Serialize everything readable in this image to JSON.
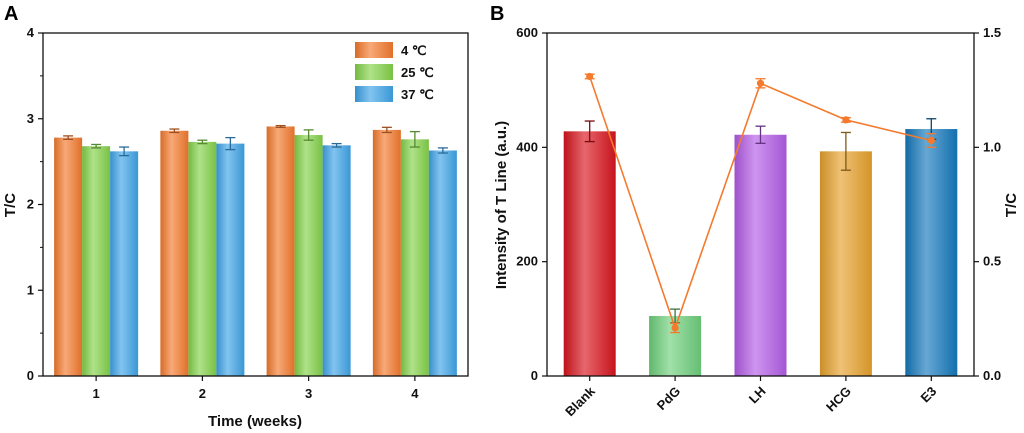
{
  "chart_data": [
    {
      "panel": "A",
      "type": "bar",
      "xlabel": "Time (weeks)",
      "ylabel": "T/C",
      "ylim": [
        0,
        4
      ],
      "yticks": [
        "0",
        "1",
        "2",
        "3",
        "4"
      ],
      "categories": [
        "1",
        "2",
        "3",
        "4"
      ],
      "legend_position": "top-right",
      "series": [
        {
          "name": "4 ℃",
          "color": "#f47a2e",
          "values": [
            2.78,
            2.86,
            2.91,
            2.87
          ],
          "errors": [
            0.02,
            0.02,
            0.01,
            0.03
          ]
        },
        {
          "name": "25 ℃",
          "color": "#84d24a",
          "values": [
            2.68,
            2.73,
            2.81,
            2.76
          ],
          "errors": [
            0.02,
            0.02,
            0.06,
            0.09
          ]
        },
        {
          "name": "37 ℃",
          "color": "#3fa4e8",
          "values": [
            2.62,
            2.71,
            2.69,
            2.63
          ],
          "errors": [
            0.05,
            0.07,
            0.02,
            0.03
          ]
        }
      ]
    },
    {
      "panel": "B",
      "type": "bar+line",
      "ylabel": "Intensity of T Line (a.u.)",
      "y2label": "T/C",
      "ylim": [
        0,
        600
      ],
      "y2lim": [
        0,
        1.5
      ],
      "yticks": [
        "0",
        "200",
        "400",
        "600"
      ],
      "y2ticks": [
        "0.0",
        "0.5",
        "1.0",
        "1.5"
      ],
      "categories": [
        "Blank",
        "PdG",
        "LH",
        "HCG",
        "E3"
      ],
      "bar_colors": [
        "#d8151e",
        "#6ed07c",
        "#b35ce6",
        "#e7a12c",
        "#1579bd"
      ],
      "bar_values": [
        428,
        105,
        422,
        393,
        432
      ],
      "bar_errors": [
        18,
        12,
        15,
        33,
        18
      ],
      "line_color": "#f47a2e",
      "line_values": [
        1.31,
        0.21,
        1.28,
        1.12,
        1.03
      ],
      "line_errors": [
        0.01,
        0.02,
        0.02,
        0.01,
        0.03
      ]
    }
  ]
}
